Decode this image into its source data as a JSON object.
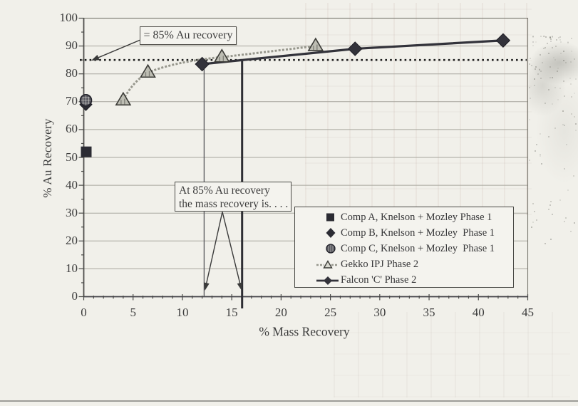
{
  "page": {
    "paper_color": "#f1f0ea",
    "ink_color": "#3c3c3c"
  },
  "axes": {
    "x_title": "% Mass Recovery",
    "y_title": "% Au Recovery",
    "x_ticks": [
      "0",
      "5",
      "10",
      "15",
      "20",
      "25",
      "30",
      "35",
      "40",
      "45"
    ],
    "y_ticks": [
      "0",
      "10",
      "20",
      "30",
      "40",
      "50",
      "60",
      "70",
      "80",
      "90",
      "100"
    ]
  },
  "annotations": {
    "ref_label": "= 85% Au recovery",
    "note_line1": "At 85% Au recovery",
    "note_line2": "the mass recovery is. . . ."
  },
  "chart_data": {
    "type": "scatter",
    "title": "",
    "xlabel": "% Mass Recovery",
    "ylabel": "% Au Recovery",
    "xlim": [
      0,
      45
    ],
    "ylim": [
      0,
      100
    ],
    "x_tick_step": 5,
    "x_minor_step": 1,
    "y_tick_step": 10,
    "y_minor_step": 5,
    "grid": "horizontal",
    "legend_position": "inside lower right",
    "reference_line": {
      "y": 85,
      "style": "bold dotted",
      "label": "= 85% Au recovery"
    },
    "annotation": {
      "text": "At 85% Au recovery the mass recovery is. . . .",
      "points_to_x": [
        12,
        16
      ]
    },
    "series": [
      {
        "name": "Comp A, Knelson + Mozley Phase 1",
        "type": "point",
        "marker": "square",
        "color": "#2b2b33",
        "points": [
          {
            "x": 0,
            "y": 52
          }
        ]
      },
      {
        "name": "Comp B, Knelson + Mozley  Phase 1",
        "type": "point",
        "marker": "diamond",
        "color": "#2b2b33",
        "points": [
          {
            "x": 0,
            "y": 69
          }
        ]
      },
      {
        "name": "Comp C, Knelson + Mozley  Phase 1",
        "type": "point",
        "marker": "hatched-circle",
        "color": "#54545c",
        "points": [
          {
            "x": 0,
            "y": 70.5
          }
        ]
      },
      {
        "name": "Gekko IPJ Phase 2",
        "type": "line",
        "marker": "triangle",
        "line_style": "dashed",
        "color": "#97978d",
        "marker_color": "#bdbdb3",
        "points": [
          {
            "x": 4,
            "y": 70.5
          },
          {
            "x": 6.5,
            "y": 80.5
          },
          {
            "x": 14,
            "y": 86
          },
          {
            "x": 23.5,
            "y": 90
          }
        ]
      },
      {
        "name": "Falcon 'C' Phase 2",
        "type": "line",
        "marker": "diamond",
        "line_style": "solid",
        "color": "#33333b",
        "points": [
          {
            "x": 12,
            "y": 83.5
          },
          {
            "x": 27.5,
            "y": 89
          },
          {
            "x": 42.5,
            "y": 92
          }
        ]
      }
    ]
  }
}
